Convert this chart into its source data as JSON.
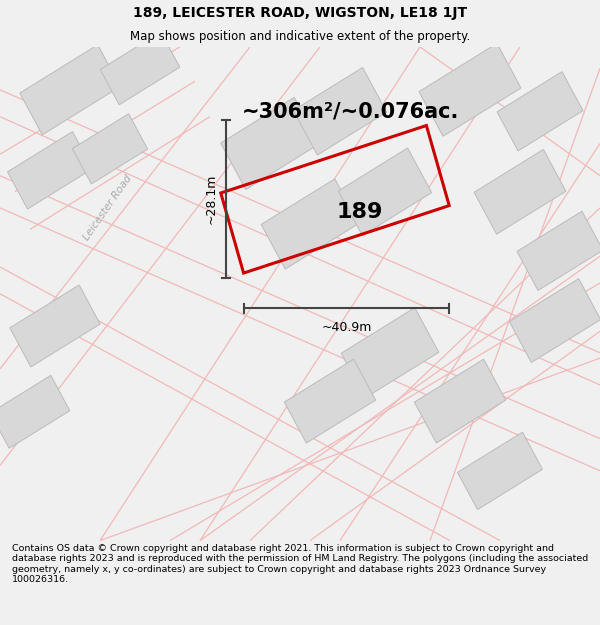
{
  "title": "189, LEICESTER ROAD, WIGSTON, LE18 1JT",
  "subtitle": "Map shows position and indicative extent of the property.",
  "area_text": "~306m²/~0.076ac.",
  "width_text": "~40.9m",
  "height_text": "~28.1m",
  "property_number": "189",
  "copyright_text": "Contains OS data © Crown copyright and database right 2021. This information is subject to Crown copyright and database rights 2023 and is reproduced with the permission of HM Land Registry. The polygons (including the associated geometry, namely x, y co-ordinates) are subject to Crown copyright and database rights 2023 Ordnance Survey 100026316.",
  "bg_color": "#f0f0f0",
  "map_bg_color": "#ffffff",
  "road_color": "#f2b8b8",
  "building_color": "#d8d8d8",
  "building_edge_color": "#bbbbbb",
  "property_outline_color": "#cc0000",
  "dimension_color": "#444444",
  "leicester_road_color": "#aaaaaa",
  "title_fontsize": 10,
  "subtitle_fontsize": 8.5,
  "area_fontsize": 15,
  "dim_fontsize": 9,
  "number_fontsize": 16,
  "copyright_fontsize": 6.8,
  "road_linewidth": 0.9,
  "property_linewidth": 2.2,
  "dim_linewidth": 1.5
}
